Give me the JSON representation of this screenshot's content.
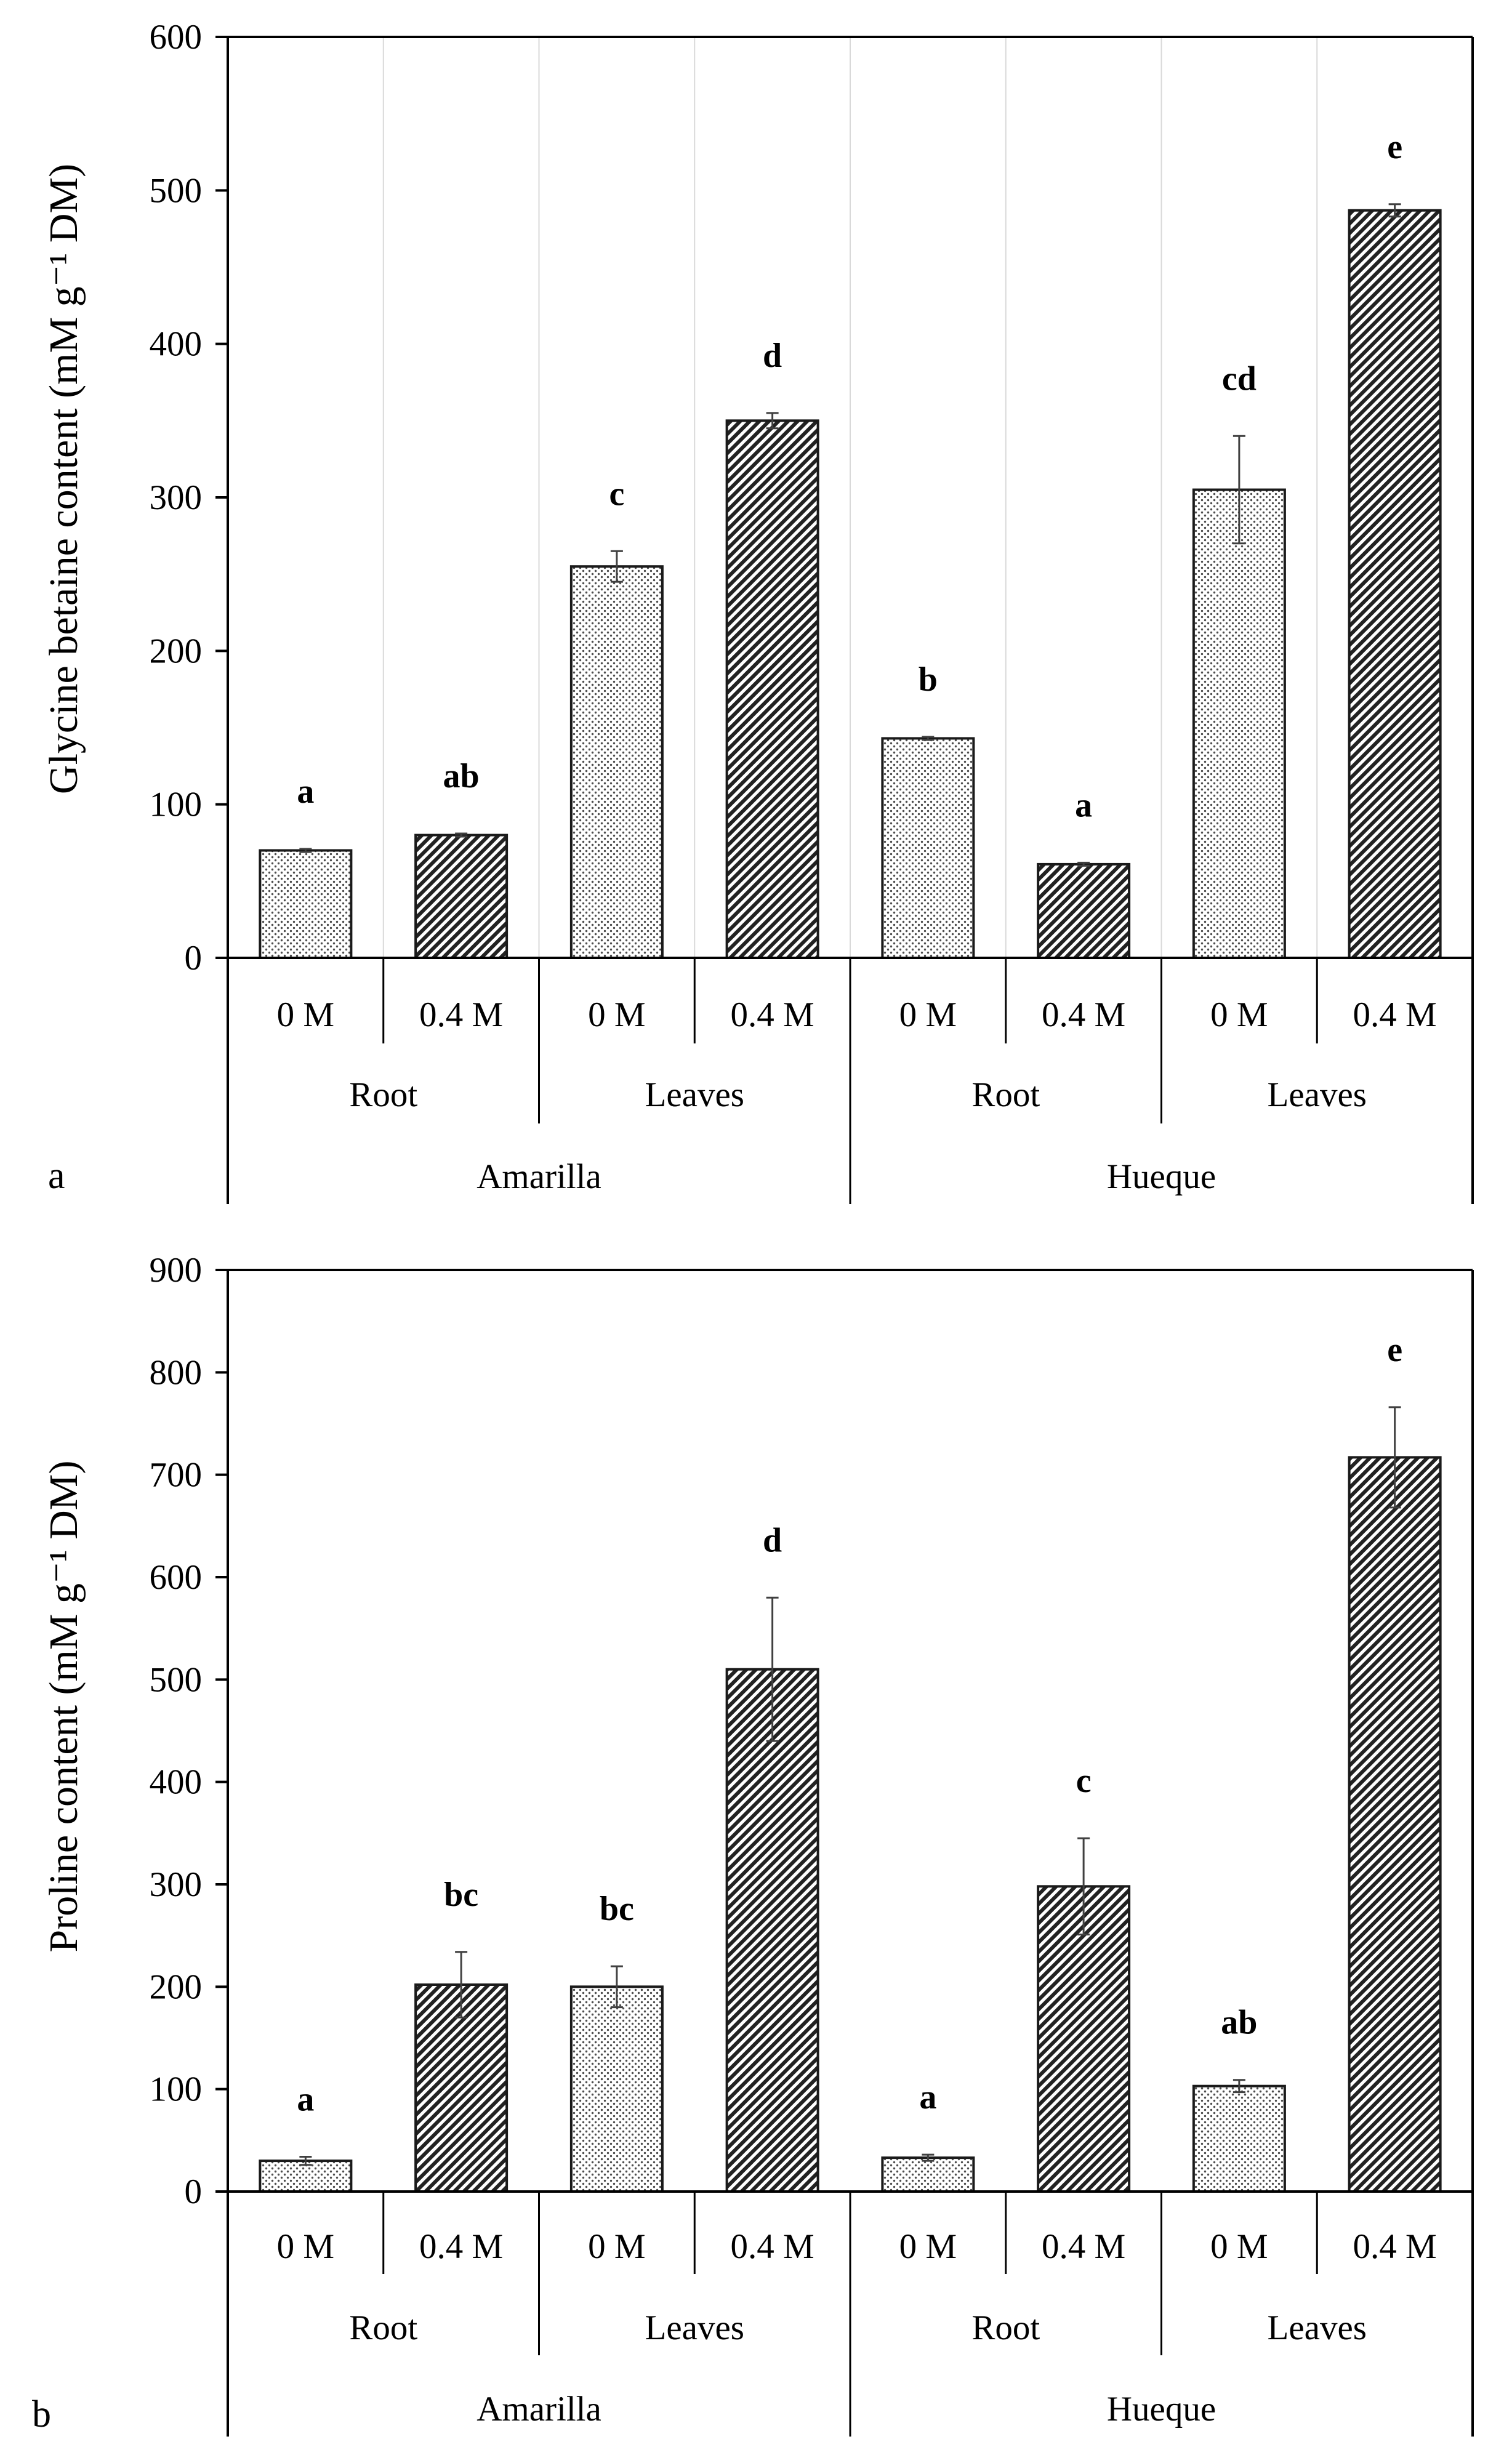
{
  "colors": {
    "background": "#ffffff",
    "axis": "#000000",
    "grid": "#d9d9d9",
    "bar_stroke": "#1a1a1a",
    "error_bar": "#404040"
  },
  "chart_data": [
    {
      "id": "a",
      "type": "bar",
      "panel_label": "a",
      "ylabel": "Glycine betaine content (mM g⁻¹ DM)",
      "ylim": [
        0,
        600
      ],
      "yticks": [
        0,
        100,
        200,
        300,
        400,
        500,
        600
      ],
      "grid": "vertical",
      "categories": [
        "0 M",
        "0.4 M",
        "0 M",
        "0.4 M",
        "0 M",
        "0.4 M",
        "0 M",
        "0.4 M"
      ],
      "tissues": [
        "Root",
        "Leaves",
        "Root",
        "Leaves"
      ],
      "varieties": [
        "Amarilla",
        "Hueque"
      ],
      "values": [
        70,
        80,
        255,
        350,
        143,
        61,
        305,
        487
      ],
      "errors": [
        1,
        1,
        10,
        5,
        1,
        1,
        35,
        4
      ],
      "patterns": [
        "dots",
        "hatch",
        "dots",
        "hatch",
        "dots",
        "hatch",
        "dots",
        "hatch"
      ],
      "significance": [
        "a",
        "ab",
        "c",
        "d",
        "b",
        "a",
        "cd",
        "e"
      ]
    },
    {
      "id": "b",
      "type": "bar",
      "panel_label": "b",
      "ylabel": "Proline content (mM g⁻¹ DM)",
      "ylim": [
        0,
        900
      ],
      "yticks": [
        0,
        100,
        200,
        300,
        400,
        500,
        600,
        700,
        800,
        900
      ],
      "grid": "none",
      "categories": [
        "0 M",
        "0.4 M",
        "0 M",
        "0.4 M",
        "0 M",
        "0.4 M",
        "0 M",
        "0.4 M"
      ],
      "tissues": [
        "Root",
        "Leaves",
        "Root",
        "Leaves"
      ],
      "varieties": [
        "Amarilla",
        "Hueque"
      ],
      "values": [
        30,
        202,
        200,
        510,
        33,
        298,
        103,
        717
      ],
      "errors": [
        4,
        32,
        20,
        70,
        3,
        47,
        6,
        49
      ],
      "patterns": [
        "dots",
        "hatch",
        "dots",
        "hatch",
        "dots",
        "hatch",
        "dots",
        "hatch"
      ],
      "significance": [
        "a",
        "bc",
        "bc",
        "d",
        "a",
        "c",
        "ab",
        "e"
      ]
    }
  ]
}
